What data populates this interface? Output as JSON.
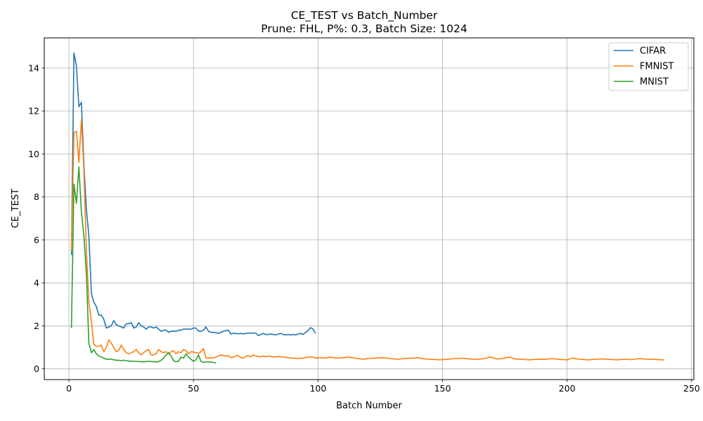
{
  "chart_data": {
    "type": "line",
    "title": "CE_TEST vs Batch_Number",
    "subtitle": "Prune: FHL, P%: 0.3, Batch Size: 1024",
    "xlabel": "Batch Number",
    "ylabel": "CE_TEST",
    "xlim": [
      -9.9,
      250.9
    ],
    "ylim": [
      -0.5,
      15.4
    ],
    "xticks": [
      0,
      50,
      100,
      150,
      200,
      250
    ],
    "yticks": [
      0,
      2,
      4,
      6,
      8,
      10,
      12,
      14
    ],
    "grid": true,
    "legend_position": "top-right",
    "series": [
      {
        "name": "CIFAR",
        "color": "#1f77b4",
        "points": [
          [
            1,
            5.3
          ],
          [
            2,
            14.7
          ],
          [
            3,
            14.1
          ],
          [
            4,
            12.2
          ],
          [
            5,
            12.4
          ],
          [
            6,
            9.5
          ],
          [
            7,
            7.4
          ],
          [
            8,
            6.2
          ],
          [
            9,
            3.5
          ],
          [
            10,
            3.1
          ],
          [
            11,
            2.9
          ],
          [
            12,
            2.5
          ],
          [
            13,
            2.5
          ],
          [
            14,
            2.3
          ],
          [
            15,
            1.9
          ],
          [
            16,
            1.95
          ],
          [
            17,
            2.0
          ],
          [
            18,
            2.25
          ],
          [
            19,
            2.05
          ],
          [
            20,
            2.0
          ],
          [
            21,
            1.95
          ],
          [
            22,
            1.9
          ],
          [
            23,
            2.1
          ],
          [
            24,
            2.1
          ],
          [
            25,
            2.15
          ],
          [
            26,
            1.9
          ],
          [
            27,
            1.95
          ],
          [
            28,
            2.15
          ],
          [
            29,
            2.0
          ],
          [
            30,
            1.95
          ],
          [
            31,
            1.85
          ],
          [
            32,
            1.95
          ],
          [
            33,
            1.95
          ],
          [
            34,
            1.9
          ],
          [
            35,
            1.95
          ],
          [
            36,
            1.85
          ],
          [
            37,
            1.75
          ],
          [
            38,
            1.8
          ],
          [
            39,
            1.8
          ],
          [
            40,
            1.7
          ],
          [
            41,
            1.75
          ],
          [
            42,
            1.75
          ],
          [
            43,
            1.75
          ],
          [
            44,
            1.8
          ],
          [
            45,
            1.8
          ],
          [
            46,
            1.85
          ],
          [
            47,
            1.85
          ],
          [
            48,
            1.85
          ],
          [
            49,
            1.85
          ],
          [
            50,
            1.9
          ],
          [
            51,
            1.9
          ],
          [
            52,
            1.75
          ],
          [
            53,
            1.75
          ],
          [
            54,
            1.8
          ],
          [
            55,
            1.95
          ],
          [
            56,
            1.75
          ],
          [
            57,
            1.7
          ],
          [
            58,
            1.7
          ],
          [
            59,
            1.68
          ],
          [
            60,
            1.65
          ],
          [
            61,
            1.7
          ],
          [
            62,
            1.75
          ],
          [
            63,
            1.78
          ],
          [
            64,
            1.8
          ],
          [
            65,
            1.62
          ],
          [
            66,
            1.65
          ],
          [
            67,
            1.65
          ],
          [
            68,
            1.63
          ],
          [
            69,
            1.65
          ],
          [
            70,
            1.63
          ],
          [
            71,
            1.65
          ],
          [
            72,
            1.65
          ],
          [
            73,
            1.67
          ],
          [
            74,
            1.65
          ],
          [
            75,
            1.67
          ],
          [
            76,
            1.55
          ],
          [
            77,
            1.6
          ],
          [
            78,
            1.65
          ],
          [
            79,
            1.6
          ],
          [
            80,
            1.6
          ],
          [
            81,
            1.62
          ],
          [
            82,
            1.6
          ],
          [
            83,
            1.58
          ],
          [
            84,
            1.62
          ],
          [
            85,
            1.65
          ],
          [
            86,
            1.6
          ],
          [
            87,
            1.58
          ],
          [
            88,
            1.6
          ],
          [
            89,
            1.58
          ],
          [
            90,
            1.6
          ],
          [
            91,
            1.58
          ],
          [
            92,
            1.62
          ],
          [
            93,
            1.65
          ],
          [
            94,
            1.6
          ],
          [
            95,
            1.7
          ],
          [
            96,
            1.78
          ],
          [
            97,
            1.92
          ],
          [
            98,
            1.85
          ],
          [
            99,
            1.65
          ]
        ]
      },
      {
        "name": "FMNIST",
        "color": "#ff7f0e",
        "points": [
          [
            1,
            5.5
          ],
          [
            2,
            11.0
          ],
          [
            3,
            11.05
          ],
          [
            4,
            9.6
          ],
          [
            5,
            11.6
          ],
          [
            6,
            9.2
          ],
          [
            7,
            5.5
          ],
          [
            8,
            3.1
          ],
          [
            9,
            2.2
          ],
          [
            10,
            1.15
          ],
          [
            11,
            1.05
          ],
          [
            12,
            1.05
          ],
          [
            13,
            1.1
          ],
          [
            14,
            0.8
          ],
          [
            15,
            1.0
          ],
          [
            16,
            1.35
          ],
          [
            17,
            1.2
          ],
          [
            18,
            1.0
          ],
          [
            19,
            0.8
          ],
          [
            20,
            0.85
          ],
          [
            21,
            1.1
          ],
          [
            22,
            0.9
          ],
          [
            23,
            0.75
          ],
          [
            24,
            0.7
          ],
          [
            25,
            0.75
          ],
          [
            26,
            0.8
          ],
          [
            27,
            0.9
          ],
          [
            28,
            0.75
          ],
          [
            29,
            0.65
          ],
          [
            30,
            0.75
          ],
          [
            31,
            0.85
          ],
          [
            32,
            0.9
          ],
          [
            33,
            0.65
          ],
          [
            34,
            0.65
          ],
          [
            35,
            0.7
          ],
          [
            36,
            0.9
          ],
          [
            37,
            0.8
          ],
          [
            38,
            0.75
          ],
          [
            39,
            0.8
          ],
          [
            40,
            0.7
          ],
          [
            41,
            0.8
          ],
          [
            42,
            0.85
          ],
          [
            43,
            0.7
          ],
          [
            44,
            0.8
          ],
          [
            45,
            0.75
          ],
          [
            46,
            0.9
          ],
          [
            47,
            0.85
          ],
          [
            48,
            0.7
          ],
          [
            49,
            0.8
          ],
          [
            50,
            0.78
          ],
          [
            51,
            0.75
          ],
          [
            52,
            0.72
          ],
          [
            53,
            0.8
          ],
          [
            54,
            0.95
          ],
          [
            55,
            0.5
          ],
          [
            56,
            0.5
          ],
          [
            57,
            0.52
          ],
          [
            58,
            0.5
          ],
          [
            59,
            0.55
          ],
          [
            60,
            0.6
          ],
          [
            61,
            0.65
          ],
          [
            62,
            0.62
          ],
          [
            63,
            0.6
          ],
          [
            64,
            0.62
          ],
          [
            65,
            0.52
          ],
          [
            66,
            0.55
          ],
          [
            67,
            0.6
          ],
          [
            68,
            0.62
          ],
          [
            69,
            0.52
          ],
          [
            70,
            0.5
          ],
          [
            71,
            0.58
          ],
          [
            72,
            0.62
          ],
          [
            73,
            0.55
          ],
          [
            74,
            0.65
          ],
          [
            75,
            0.6
          ],
          [
            76,
            0.58
          ],
          [
            77,
            0.55
          ],
          [
            78,
            0.6
          ],
          [
            79,
            0.55
          ],
          [
            80,
            0.6
          ],
          [
            82,
            0.55
          ],
          [
            84,
            0.58
          ],
          [
            86,
            0.55
          ],
          [
            88,
            0.52
          ],
          [
            90,
            0.5
          ],
          [
            92,
            0.48
          ],
          [
            94,
            0.5
          ],
          [
            96,
            0.55
          ],
          [
            98,
            0.55
          ],
          [
            99,
            0.5
          ],
          [
            101,
            0.52
          ],
          [
            103,
            0.5
          ],
          [
            105,
            0.55
          ],
          [
            107,
            0.5
          ],
          [
            110,
            0.52
          ],
          [
            112,
            0.55
          ],
          [
            115,
            0.5
          ],
          [
            118,
            0.45
          ],
          [
            120,
            0.48
          ],
          [
            123,
            0.5
          ],
          [
            126,
            0.52
          ],
          [
            129,
            0.48
          ],
          [
            132,
            0.45
          ],
          [
            135,
            0.48
          ],
          [
            138,
            0.5
          ],
          [
            140,
            0.52
          ],
          [
            143,
            0.46
          ],
          [
            146,
            0.44
          ],
          [
            149,
            0.42
          ],
          [
            152,
            0.45
          ],
          [
            155,
            0.48
          ],
          [
            158,
            0.5
          ],
          [
            161,
            0.46
          ],
          [
            164,
            0.44
          ],
          [
            167,
            0.48
          ],
          [
            169,
            0.55
          ],
          [
            172,
            0.46
          ],
          [
            175,
            0.5
          ],
          [
            177,
            0.55
          ],
          [
            179,
            0.46
          ],
          [
            182,
            0.44
          ],
          [
            185,
            0.42
          ],
          [
            188,
            0.45
          ],
          [
            191,
            0.44
          ],
          [
            194,
            0.48
          ],
          [
            197,
            0.44
          ],
          [
            200,
            0.42
          ],
          [
            202,
            0.5
          ],
          [
            205,
            0.45
          ],
          [
            208,
            0.42
          ],
          [
            211,
            0.44
          ],
          [
            214,
            0.46
          ],
          [
            217,
            0.44
          ],
          [
            220,
            0.42
          ],
          [
            223,
            0.45
          ],
          [
            226,
            0.43
          ],
          [
            229,
            0.48
          ],
          [
            232,
            0.45
          ],
          [
            235,
            0.44
          ],
          [
            238,
            0.42
          ],
          [
            239,
            0.42
          ]
        ]
      },
      {
        "name": "MNIST",
        "color": "#2ca02c",
        "points": [
          [
            1,
            1.9
          ],
          [
            2,
            8.6
          ],
          [
            3,
            7.7
          ],
          [
            4,
            9.4
          ],
          [
            5,
            7.3
          ],
          [
            6,
            6.2
          ],
          [
            7,
            4.4
          ],
          [
            8,
            1.2
          ],
          [
            9,
            0.75
          ],
          [
            10,
            0.9
          ],
          [
            11,
            0.7
          ],
          [
            12,
            0.6
          ],
          [
            13,
            0.55
          ],
          [
            14,
            0.5
          ],
          [
            15,
            0.45
          ],
          [
            16,
            0.45
          ],
          [
            17,
            0.45
          ],
          [
            18,
            0.42
          ],
          [
            19,
            0.4
          ],
          [
            20,
            0.4
          ],
          [
            21,
            0.38
          ],
          [
            22,
            0.4
          ],
          [
            23,
            0.38
          ],
          [
            24,
            0.36
          ],
          [
            25,
            0.36
          ],
          [
            26,
            0.35
          ],
          [
            27,
            0.35
          ],
          [
            28,
            0.34
          ],
          [
            29,
            0.33
          ],
          [
            30,
            0.33
          ],
          [
            31,
            0.34
          ],
          [
            32,
            0.35
          ],
          [
            33,
            0.34
          ],
          [
            34,
            0.34
          ],
          [
            35,
            0.32
          ],
          [
            36,
            0.34
          ],
          [
            37,
            0.4
          ],
          [
            38,
            0.5
          ],
          [
            39,
            0.65
          ],
          [
            40,
            0.75
          ],
          [
            41,
            0.6
          ],
          [
            42,
            0.38
          ],
          [
            43,
            0.33
          ],
          [
            44,
            0.36
          ],
          [
            45,
            0.55
          ],
          [
            46,
            0.5
          ],
          [
            47,
            0.7
          ],
          [
            48,
            0.55
          ],
          [
            49,
            0.45
          ],
          [
            50,
            0.35
          ],
          [
            51,
            0.42
          ],
          [
            52,
            0.65
          ],
          [
            53,
            0.35
          ],
          [
            54,
            0.3
          ],
          [
            55,
            0.32
          ],
          [
            56,
            0.33
          ],
          [
            57,
            0.32
          ],
          [
            58,
            0.3
          ],
          [
            59,
            0.27
          ]
        ]
      }
    ]
  }
}
